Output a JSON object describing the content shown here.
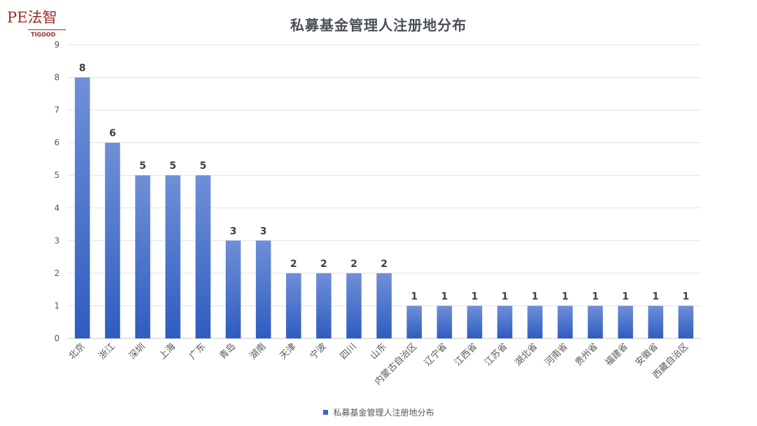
{
  "logo": {
    "main": "PE法智",
    "sub": "TIGOOD"
  },
  "colors": {
    "bar_top": "#6f90d8",
    "bar_bottom": "#2f5cc0",
    "grid": "#e3e3e3",
    "axis_text": "#595959",
    "label_text": "#404040"
  },
  "chart_data": {
    "type": "bar",
    "title": "私募基金管理人注册地分布",
    "xlabel": "",
    "ylabel": "",
    "ylim": [
      0,
      9
    ],
    "yticks": [
      0,
      1,
      2,
      3,
      4,
      5,
      6,
      7,
      8,
      9
    ],
    "grid": true,
    "legend": "bottom",
    "categories": [
      "北京",
      "浙江",
      "深圳",
      "上海",
      "广东",
      "青岛",
      "湖南",
      "天津",
      "宁波",
      "四川",
      "山东",
      "内蒙古自治区",
      "辽宁省",
      "江西省",
      "江苏省",
      "湖北省",
      "河南省",
      "贵州省",
      "福建省",
      "安徽省",
      "西藏自治区"
    ],
    "series": [
      {
        "name": "私募基金管理人注册地分布",
        "values": [
          8,
          6,
          5,
          5,
          5,
          3,
          3,
          2,
          2,
          2,
          2,
          1,
          1,
          1,
          1,
          1,
          1,
          1,
          1,
          1,
          1
        ]
      }
    ]
  }
}
